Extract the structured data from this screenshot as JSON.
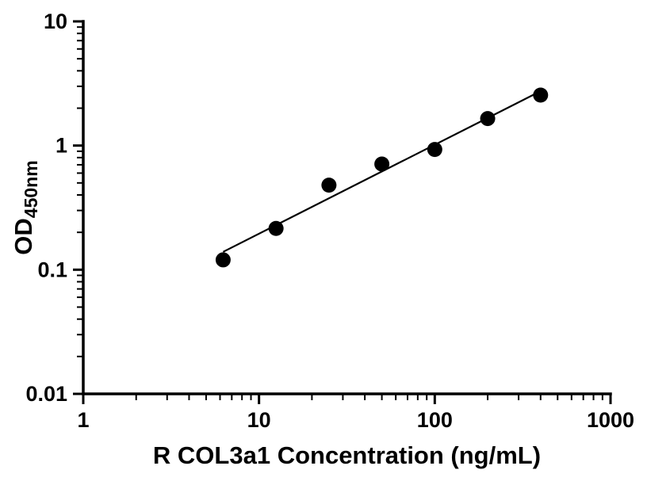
{
  "chart_data": {
    "type": "scatter",
    "title": "",
    "xlabel": "R COL3a1 Concentration (ng/mL)",
    "ylabel_main": "OD",
    "ylabel_sub": "450nm",
    "x_scale": "log",
    "y_scale": "log",
    "xlim": [
      1,
      1000
    ],
    "ylim": [
      0.01,
      10
    ],
    "x_ticks": [
      1,
      10,
      100,
      1000
    ],
    "x_tick_labels": [
      "1",
      "10",
      "100",
      "1000"
    ],
    "y_ticks": [
      0.01,
      0.1,
      1,
      10
    ],
    "y_tick_labels": [
      "0.01",
      "0.1",
      "1",
      "10"
    ],
    "grid": false,
    "legend": "none",
    "x": [
      6.25,
      12.5,
      25,
      50,
      100,
      200,
      400
    ],
    "y": [
      0.12,
      0.215,
      0.48,
      0.71,
      0.93,
      1.65,
      2.55
    ],
    "fit": "linear fit on log-log axes (power curve)",
    "point_color": "#000000",
    "line_color": "#000000",
    "axis_color": "#000000",
    "background_color": "#ffffff"
  }
}
